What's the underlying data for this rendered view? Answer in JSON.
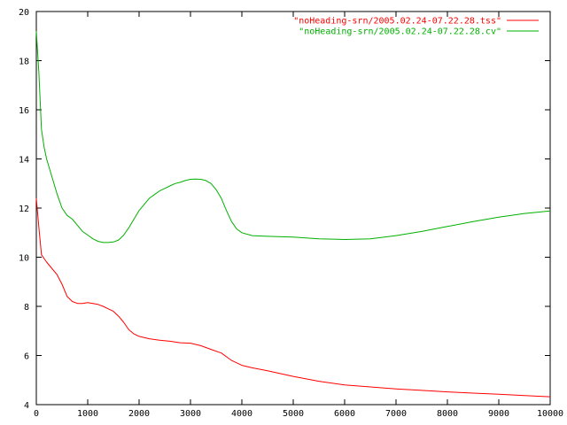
{
  "chart_data": {
    "type": "line",
    "title": "",
    "xlabel": "",
    "ylabel": "",
    "xlim": [
      0,
      10000
    ],
    "ylim": [
      4,
      20
    ],
    "x_ticks": [
      0,
      1000,
      2000,
      3000,
      4000,
      5000,
      6000,
      7000,
      8000,
      9000,
      10000
    ],
    "y_ticks": [
      4,
      6,
      8,
      10,
      12,
      14,
      16,
      18,
      20
    ],
    "grid": false,
    "legend_position": "top-right",
    "series": [
      {
        "name": "\"noHeading-srn/2005.02.24-07.22.28.tss\"",
        "color": "#ff0000",
        "x": [
          0,
          50,
          100,
          150,
          200,
          300,
          400,
          500,
          600,
          700,
          800,
          900,
          1000,
          1100,
          1200,
          1300,
          1400,
          1500,
          1600,
          1700,
          1800,
          1900,
          2000,
          2200,
          2400,
          2600,
          2800,
          3000,
          3200,
          3400,
          3600,
          3700,
          3800,
          3900,
          4000,
          4200,
          4500,
          5000,
          5500,
          6000,
          6500,
          7000,
          7500,
          8000,
          8500,
          9000,
          9500,
          10000
        ],
        "y": [
          12.4,
          11.2,
          10.1,
          9.95,
          9.8,
          9.55,
          9.3,
          8.9,
          8.4,
          8.2,
          8.12,
          8.12,
          8.15,
          8.12,
          8.08,
          8.0,
          7.9,
          7.8,
          7.6,
          7.35,
          7.05,
          6.88,
          6.78,
          6.68,
          6.62,
          6.58,
          6.52,
          6.5,
          6.4,
          6.25,
          6.1,
          5.95,
          5.8,
          5.7,
          5.6,
          5.5,
          5.38,
          5.15,
          4.95,
          4.8,
          4.72,
          4.64,
          4.58,
          4.52,
          4.47,
          4.42,
          4.37,
          4.32
        ]
      },
      {
        "name": "\"noHeading-srn/2005.02.24-07.22.28.cv\"",
        "color": "#00b000",
        "x": [
          0,
          50,
          100,
          150,
          200,
          300,
          400,
          500,
          600,
          700,
          800,
          900,
          1000,
          1100,
          1200,
          1300,
          1400,
          1500,
          1600,
          1700,
          1800,
          1900,
          2000,
          2100,
          2200,
          2300,
          2400,
          2500,
          2600,
          2700,
          2800,
          2900,
          3000,
          3100,
          3200,
          3300,
          3400,
          3500,
          3600,
          3700,
          3800,
          3900,
          4000,
          4200,
          4500,
          5000,
          5500,
          6000,
          6500,
          7000,
          7500,
          8000,
          8500,
          9000,
          9500,
          10000
        ],
        "y": [
          19.2,
          17.5,
          15.2,
          14.5,
          14.0,
          13.3,
          12.6,
          12.0,
          11.7,
          11.55,
          11.3,
          11.05,
          10.9,
          10.75,
          10.65,
          10.6,
          10.6,
          10.62,
          10.7,
          10.9,
          11.2,
          11.55,
          11.9,
          12.15,
          12.4,
          12.55,
          12.7,
          12.8,
          12.9,
          13.0,
          13.05,
          13.12,
          13.17,
          13.18,
          13.17,
          13.12,
          13.0,
          12.75,
          12.4,
          11.9,
          11.45,
          11.15,
          11.0,
          10.88,
          10.85,
          10.82,
          10.75,
          10.72,
          10.75,
          10.88,
          11.05,
          11.25,
          11.45,
          11.63,
          11.78,
          11.88
        ]
      }
    ]
  }
}
